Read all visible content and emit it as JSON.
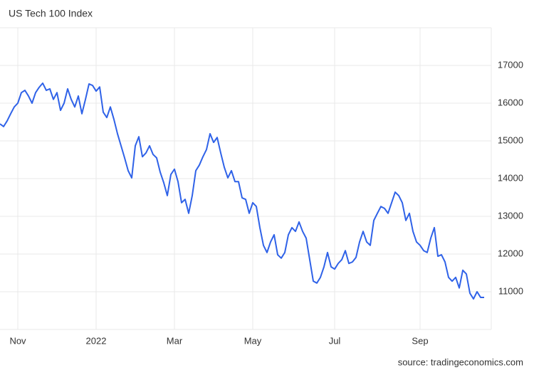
{
  "chart_data": {
    "type": "line",
    "title": "US Tech 100 Index",
    "source": "source: tradingeconomics.com",
    "categories": [
      null,
      null,
      null,
      null,
      null,
      "Nov",
      null,
      null,
      null,
      null,
      null,
      null,
      null,
      null,
      null,
      null,
      null,
      null,
      null,
      null,
      null,
      null,
      null,
      null,
      null,
      null,
      null,
      "2022",
      null,
      null,
      null,
      null,
      null,
      null,
      null,
      null,
      null,
      null,
      null,
      null,
      null,
      null,
      null,
      null,
      null,
      null,
      null,
      null,
      null,
      "Mar",
      null,
      null,
      null,
      null,
      null,
      null,
      null,
      null,
      null,
      null,
      null,
      null,
      null,
      null,
      null,
      null,
      null,
      null,
      null,
      null,
      null,
      "May",
      null,
      null,
      null,
      null,
      null,
      null,
      null,
      null,
      null,
      null,
      null,
      null,
      null,
      null,
      null,
      null,
      null,
      null,
      null,
      null,
      null,
      null,
      "Jul",
      null,
      null,
      null,
      null,
      null,
      null,
      null,
      null,
      null,
      null,
      null,
      null,
      null,
      null,
      null,
      null,
      null,
      null,
      null,
      null,
      null,
      null,
      null,
      "Sep",
      null,
      null,
      null,
      null,
      null,
      null,
      null,
      null,
      null,
      null,
      null,
      null,
      null,
      null,
      null,
      null,
      null,
      null
    ],
    "series": [
      {
        "name": "US Tech 100 Index",
        "color": "#2f62e8",
        "values": [
          15450,
          15380,
          15530,
          15720,
          15900,
          16000,
          16280,
          16340,
          16190,
          16000,
          16280,
          16420,
          16530,
          16340,
          16380,
          16100,
          16280,
          15810,
          16000,
          16380,
          16100,
          15900,
          16190,
          15720,
          16100,
          16510,
          16470,
          16320,
          16430,
          15760,
          15620,
          15900,
          15570,
          15190,
          14870,
          14550,
          14210,
          14020,
          14870,
          15110,
          14580,
          14680,
          14870,
          14640,
          14550,
          14170,
          13890,
          13550,
          14110,
          14250,
          13920,
          13360,
          13450,
          13080,
          13550,
          14210,
          14360,
          14580,
          14770,
          15190,
          14960,
          15090,
          14680,
          14300,
          14020,
          14210,
          13920,
          13920,
          13490,
          13450,
          13080,
          13360,
          13260,
          12700,
          12230,
          12040,
          12320,
          12510,
          11980,
          11890,
          12040,
          12510,
          12700,
          12600,
          12850,
          12600,
          12420,
          11850,
          11280,
          11230,
          11380,
          11660,
          12040,
          11660,
          11600,
          11750,
          11850,
          12090,
          11750,
          11790,
          11910,
          12320,
          12600,
          12320,
          12230,
          12890,
          13080,
          13260,
          13210,
          13080,
          13360,
          13640,
          13550,
          13360,
          12890,
          13080,
          12600,
          12320,
          12230,
          12090,
          12040,
          12420,
          12700,
          11940,
          11980,
          11790,
          11380,
          11280,
          11380,
          11100,
          11570,
          11470,
          10960,
          10810,
          11000,
          10850,
          10850
        ]
      }
    ],
    "ylim": [
      10000,
      18000
    ],
    "yticks": [
      11000,
      12000,
      13000,
      14000,
      15000,
      16000,
      17000
    ],
    "grid": true
  }
}
